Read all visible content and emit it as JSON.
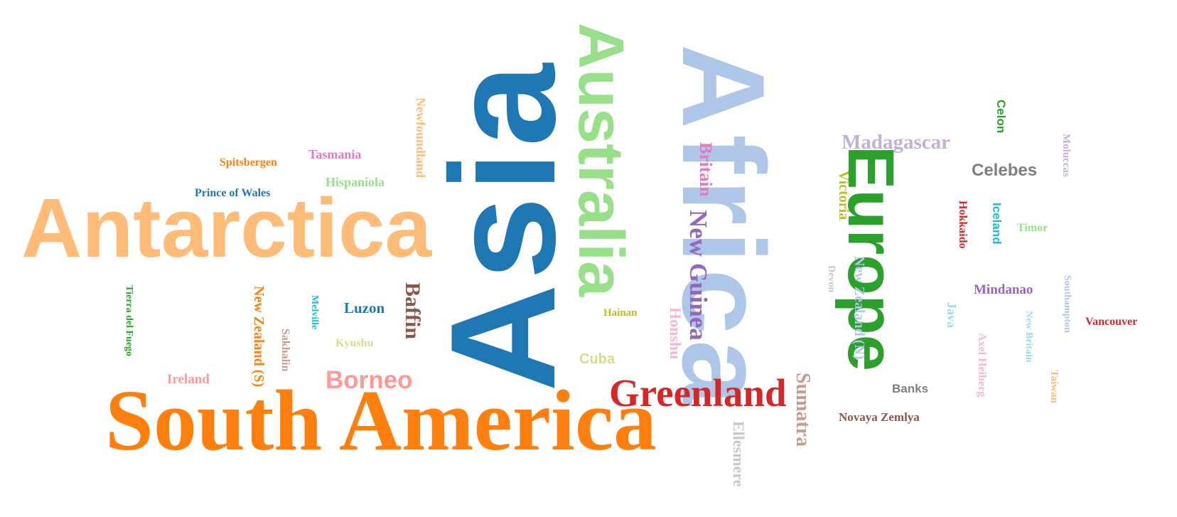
{
  "words": [
    {
      "id": "asia",
      "text": "Asia",
      "color": "#1f77b4"
    },
    {
      "id": "africa",
      "text": "Africa",
      "color": "#aec7e8"
    },
    {
      "id": "antarctica",
      "text": "Antarctica",
      "color": "#ffbb78"
    },
    {
      "id": "south-america",
      "text": "South America",
      "color": "#ff7f0e"
    },
    {
      "id": "australia",
      "text": "Australia",
      "color": "#98df8a"
    },
    {
      "id": "europe",
      "text": "Europe",
      "color": "#2ca02c"
    },
    {
      "id": "greenland",
      "text": "Greenland",
      "color": "#d62728"
    },
    {
      "id": "new-guinea",
      "text": "New Guinea",
      "color": "#9467bd"
    },
    {
      "id": "borneo",
      "text": "Borneo",
      "color": "#ff9896"
    },
    {
      "id": "madagascar",
      "text": "Madagascar",
      "color": "#c5b0d5"
    },
    {
      "id": "baffin",
      "text": "Baffin",
      "color": "#8c564b"
    },
    {
      "id": "sumatra",
      "text": "Sumatra",
      "color": "#c49c94"
    },
    {
      "id": "honshu",
      "text": "Honshu",
      "color": "#f7b6d2"
    },
    {
      "id": "britain",
      "text": "Britain",
      "color": "#e377c2"
    },
    {
      "id": "victoria",
      "text": "Victoria",
      "color": "#bcbd22"
    },
    {
      "id": "ellesmere",
      "text": "Ellesmere",
      "color": "#c7c7c7"
    },
    {
      "id": "celebes",
      "text": "Celebes",
      "color": "#7f7f7f"
    },
    {
      "id": "new-zealand-s",
      "text": "New Zealand (S)",
      "color": "#ff7f0e"
    },
    {
      "id": "java",
      "text": "Java",
      "color": "#9edae5"
    },
    {
      "id": "new-zealand-n",
      "text": "New Zealand (N)",
      "color": "#aec7e8"
    },
    {
      "id": "cuba",
      "text": "Cuba",
      "color": "#dbdb8d"
    },
    {
      "id": "newfoundland",
      "text": "Newfoundland",
      "color": "#ffbb78"
    },
    {
      "id": "luzon",
      "text": "Luzon",
      "color": "#1f77b4"
    },
    {
      "id": "iceland",
      "text": "Iceland",
      "color": "#17becf"
    },
    {
      "id": "mindanao",
      "text": "Mindanao",
      "color": "#9467bd"
    },
    {
      "id": "ireland",
      "text": "Ireland",
      "color": "#ff9896"
    },
    {
      "id": "hokkaido",
      "text": "Hokkaido",
      "color": "#d62728"
    },
    {
      "id": "sakhalin",
      "text": "Sakhalin",
      "color": "#c49c94"
    },
    {
      "id": "hispaniola",
      "text": "Hispaniola",
      "color": "#98df8a"
    },
    {
      "id": "banks",
      "text": "Banks",
      "color": "#7f7f7f"
    },
    {
      "id": "tasmania",
      "text": "Tasmania",
      "color": "#e377c2"
    },
    {
      "id": "celon",
      "text": "Celon",
      "color": "#2ca02c"
    },
    {
      "id": "devon",
      "text": "Devon",
      "color": "#c7c7c7"
    },
    {
      "id": "tierra-del-fuego",
      "text": "Tierra del Fuego",
      "color": "#2ca02c"
    },
    {
      "id": "southampton",
      "text": "Southampton",
      "color": "#aec7e8"
    },
    {
      "id": "kyushu",
      "text": "Kyushu",
      "color": "#dbdb8d"
    },
    {
      "id": "novaya-zemlya",
      "text": "Novaya Zemlya",
      "color": "#8c564b"
    },
    {
      "id": "melville",
      "text": "Melville",
      "color": "#17becf"
    },
    {
      "id": "axel-heiberg",
      "text": "Axel Heiberg",
      "color": "#f7b6d2"
    },
    {
      "id": "new-britain",
      "text": "New Britain",
      "color": "#9edae5"
    },
    {
      "id": "taiwan",
      "text": "Taiwan",
      "color": "#ffbb78"
    },
    {
      "id": "hainan",
      "text": "Hainan",
      "color": "#bcbd22"
    },
    {
      "id": "prince-of-wales",
      "text": "Prince of Wales",
      "color": "#1f77b4"
    },
    {
      "id": "vancouver",
      "text": "Vancouver",
      "color": "#d62728"
    },
    {
      "id": "spitsbergen",
      "text": "Spitsbergen",
      "color": "#ff7f0e"
    },
    {
      "id": "timor",
      "text": "Timor",
      "color": "#98df8a"
    },
    {
      "id": "moluccas",
      "text": "Moluccas",
      "color": "#c5b0d5"
    }
  ]
}
